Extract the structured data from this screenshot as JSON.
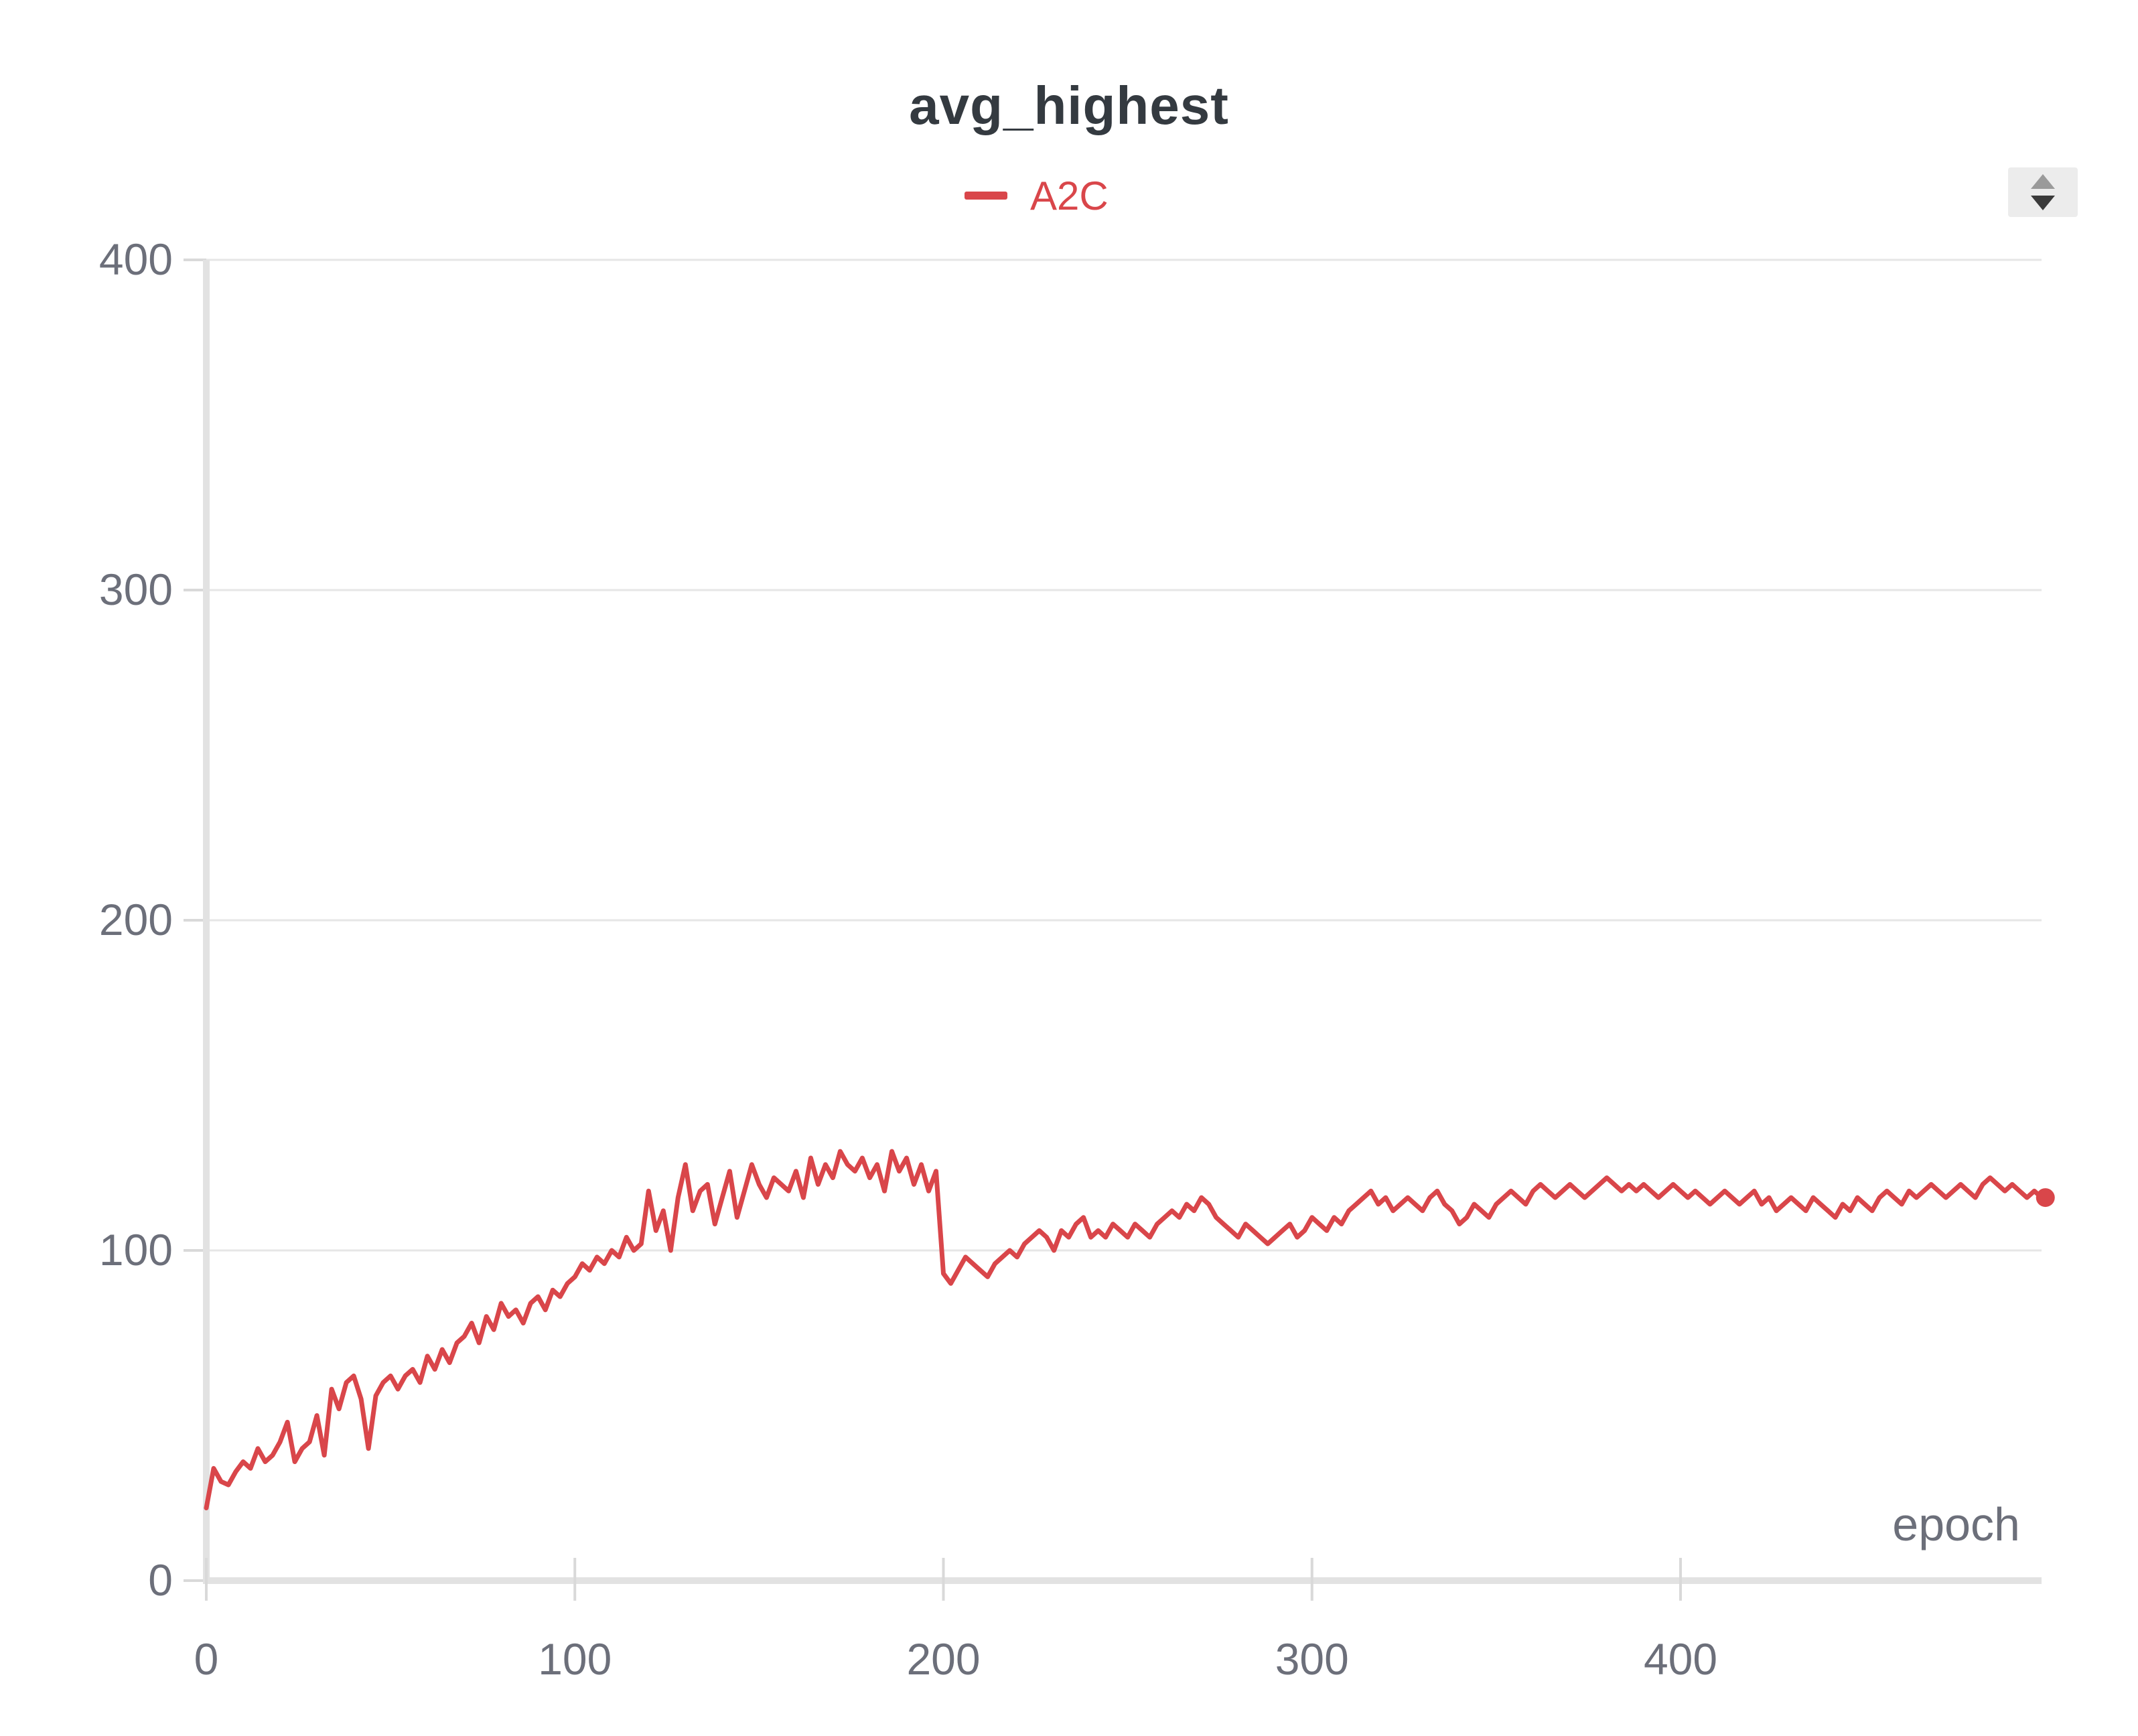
{
  "chart_data": {
    "type": "line",
    "title": "avg_highest",
    "xlabel": "epoch",
    "ylabel": "",
    "xlim": [
      0,
      500
    ],
    "ylim": [
      0,
      400
    ],
    "xticks": [
      0,
      100,
      200,
      300,
      400
    ],
    "yticks": [
      0,
      100,
      200,
      300,
      400
    ],
    "grid": "horizontal",
    "legend_position": "top-center",
    "series": [
      {
        "name": "A2C",
        "color": "#d9464a",
        "x": [
          0,
          2,
          4,
          6,
          8,
          10,
          12,
          14,
          16,
          18,
          20,
          22,
          24,
          26,
          28,
          30,
          32,
          34,
          36,
          38,
          40,
          42,
          44,
          46,
          48,
          50,
          52,
          54,
          56,
          58,
          60,
          62,
          64,
          66,
          68,
          70,
          72,
          74,
          76,
          78,
          80,
          82,
          84,
          86,
          88,
          90,
          92,
          94,
          96,
          98,
          100,
          102,
          104,
          106,
          108,
          110,
          112,
          114,
          116,
          118,
          120,
          122,
          124,
          126,
          128,
          130,
          132,
          134,
          136,
          138,
          140,
          142,
          144,
          146,
          148,
          150,
          152,
          154,
          156,
          158,
          160,
          162,
          164,
          166,
          168,
          170,
          172,
          174,
          176,
          178,
          180,
          182,
          184,
          186,
          188,
          190,
          192,
          194,
          196,
          198,
          200,
          202,
          204,
          206,
          208,
          210,
          212,
          214,
          216,
          218,
          220,
          222,
          224,
          226,
          228,
          230,
          232,
          234,
          236,
          238,
          240,
          242,
          244,
          246,
          248,
          250,
          252,
          254,
          256,
          258,
          260,
          262,
          264,
          266,
          268,
          270,
          272,
          274,
          276,
          278,
          280,
          282,
          284,
          286,
          288,
          290,
          292,
          294,
          296,
          298,
          300,
          302,
          304,
          306,
          308,
          310,
          312,
          314,
          316,
          318,
          320,
          322,
          324,
          326,
          328,
          330,
          332,
          334,
          336,
          338,
          340,
          342,
          344,
          346,
          348,
          350,
          352,
          354,
          356,
          358,
          360,
          362,
          364,
          366,
          368,
          370,
          372,
          374,
          376,
          378,
          380,
          382,
          384,
          386,
          388,
          390,
          392,
          394,
          396,
          398,
          400,
          402,
          404,
          406,
          408,
          410,
          412,
          414,
          416,
          418,
          420,
          422,
          424,
          426,
          428,
          430,
          432,
          434,
          436,
          438,
          440,
          442,
          444,
          446,
          448,
          450,
          452,
          454,
          456,
          458,
          460,
          462,
          464,
          466,
          468,
          470,
          472,
          474,
          476,
          478,
          480,
          482,
          484,
          486,
          488,
          490,
          492,
          494,
          496,
          498,
          499
        ],
        "y": [
          22,
          34,
          30,
          29,
          33,
          36,
          34,
          40,
          36,
          38,
          42,
          48,
          36,
          40,
          42,
          50,
          38,
          58,
          52,
          60,
          62,
          55,
          40,
          56,
          60,
          62,
          58,
          62,
          64,
          60,
          68,
          64,
          70,
          66,
          72,
          74,
          78,
          72,
          80,
          76,
          84,
          80,
          82,
          78,
          84,
          86,
          82,
          88,
          86,
          90,
          92,
          96,
          94,
          98,
          96,
          100,
          98,
          104,
          100,
          102,
          118,
          106,
          112,
          100,
          116,
          126,
          112,
          118,
          120,
          108,
          116,
          124,
          110,
          118,
          126,
          120,
          116,
          122,
          120,
          118,
          124,
          116,
          128,
          120,
          126,
          122,
          130,
          126,
          124,
          128,
          122,
          126,
          118,
          130,
          124,
          128,
          120,
          126,
          118,
          124,
          93,
          90,
          94,
          98,
          96,
          94,
          92,
          96,
          98,
          100,
          98,
          102,
          104,
          106,
          104,
          100,
          106,
          104,
          108,
          110,
          104,
          106,
          104,
          108,
          106,
          104,
          108,
          106,
          104,
          108,
          110,
          112,
          110,
          114,
          112,
          116,
          114,
          110,
          108,
          106,
          104,
          108,
          106,
          104,
          102,
          104,
          106,
          108,
          104,
          106,
          110,
          108,
          106,
          110,
          108,
          112,
          114,
          116,
          118,
          114,
          116,
          112,
          114,
          116,
          114,
          112,
          116,
          118,
          114,
          112,
          108,
          110,
          114,
          112,
          110,
          114,
          116,
          118,
          116,
          114,
          118,
          120,
          118,
          116,
          118,
          120,
          118,
          116,
          118,
          120,
          122,
          120,
          118,
          120,
          118,
          120,
          118,
          116,
          118,
          120,
          118,
          116,
          118,
          116,
          114,
          116,
          118,
          116,
          114,
          116,
          118,
          114,
          116,
          112,
          114,
          116,
          114,
          112,
          116,
          114,
          112,
          110,
          114,
          112,
          116,
          114,
          112,
          116,
          118,
          116,
          114,
          118,
          116,
          118,
          120,
          118,
          116,
          118,
          120,
          118,
          116,
          120,
          122,
          120,
          118,
          120,
          118,
          116,
          118,
          116,
          116
        ]
      }
    ]
  }
}
